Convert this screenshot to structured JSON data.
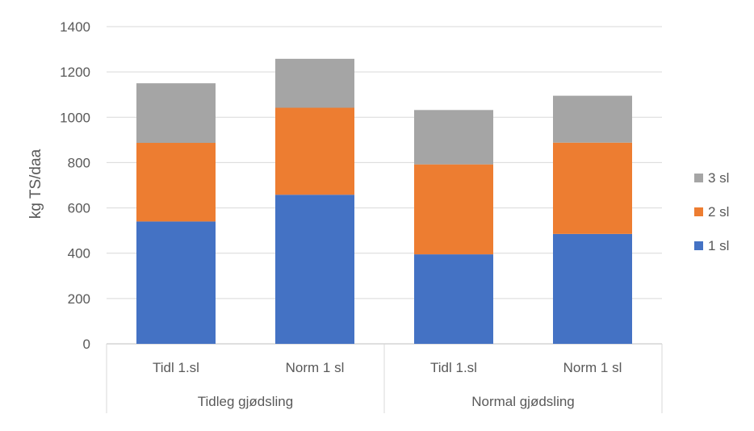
{
  "chart_data": {
    "type": "bar",
    "stacked": true,
    "title": "",
    "ylabel": "kg TS/daa",
    "xlabel": "",
    "ylim": [
      0,
      1400
    ],
    "yticks": [
      0,
      200,
      400,
      600,
      800,
      1000,
      1200,
      1400
    ],
    "ytick_labels": [
      "0",
      "200",
      "400",
      "600",
      "800",
      "1000",
      "1200",
      "1400"
    ],
    "grid": true,
    "legend_position": "right",
    "categories": [
      "Tidl 1.sl",
      "Norm 1 sl",
      "Tidl 1.sl",
      "Norm 1 sl"
    ],
    "groups": [
      {
        "label": "Tidleg gjødsling",
        "span": [
          0,
          1
        ]
      },
      {
        "label": "Normal gjødsling",
        "span": [
          2,
          3
        ]
      }
    ],
    "series": [
      {
        "name": "1 sl",
        "color": "#4472C4",
        "values": [
          540,
          658,
          395,
          485
        ]
      },
      {
        "name": "2 sl",
        "color": "#ED7D31",
        "values": [
          347,
          384,
          397,
          403
        ]
      },
      {
        "name": "3 sl",
        "color": "#A5A5A5",
        "values": [
          263,
          216,
          240,
          207
        ]
      }
    ]
  }
}
